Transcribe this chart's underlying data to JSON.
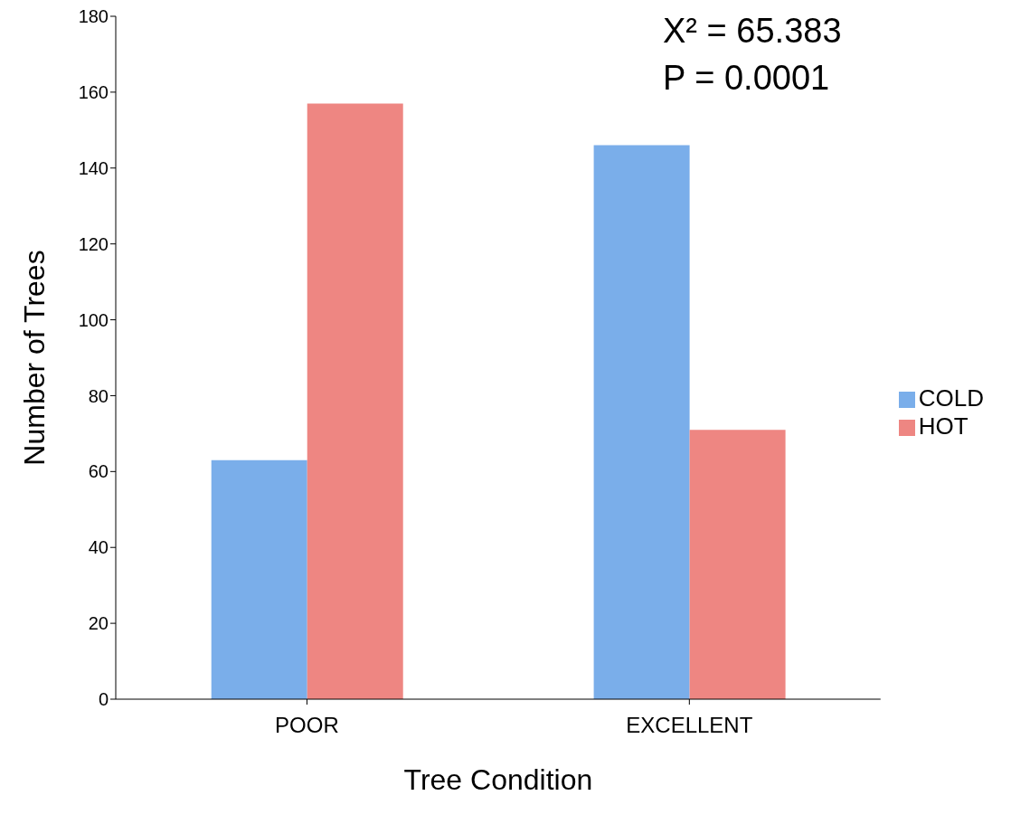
{
  "chart_data": {
    "type": "bar",
    "xlabel": "Tree Condition",
    "ylabel": "Number of Trees",
    "categories": [
      "POOR",
      "EXCELLENT"
    ],
    "series": [
      {
        "name": "COLD",
        "color": "#7aaeea",
        "values": [
          63,
          146
        ]
      },
      {
        "name": "HOT",
        "color": "#ee8682",
        "values": [
          157,
          71
        ]
      }
    ],
    "ylim": [
      0,
      180
    ],
    "yticks": [
      0,
      20,
      40,
      60,
      80,
      100,
      120,
      140,
      160,
      180
    ],
    "grid": false,
    "legend": "right",
    "annotations": [
      "X² = 65.383",
      "P = 0.0001"
    ]
  }
}
